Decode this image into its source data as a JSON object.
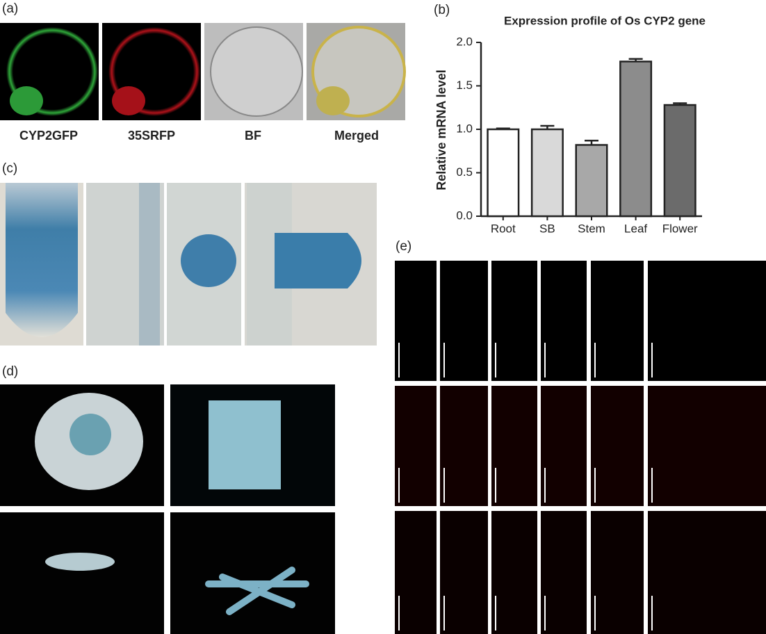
{
  "panels": {
    "a": {
      "label": "(a)",
      "captions": [
        "CYP2GFP",
        "35SRFP",
        "BF",
        "Merged"
      ]
    },
    "b": {
      "label": "(b)"
    },
    "c": {
      "label": "(c)"
    },
    "d": {
      "label": "(d)"
    },
    "e": {
      "label": "(e)"
    }
  },
  "chart_data": {
    "type": "bar",
    "title": "Expression profile of Os CYP2 gene",
    "y_label": "Relative mRNA level",
    "categories": [
      "Root",
      "SB",
      "Stem",
      "Leaf",
      "Flower"
    ],
    "values": [
      1.0,
      1.0,
      0.82,
      1.78,
      1.28
    ],
    "errors": [
      0.01,
      0.04,
      0.05,
      0.03,
      0.02
    ],
    "colors": [
      "#ffffff",
      "#d9d9d9",
      "#a8a8a8",
      "#8c8c8c",
      "#6b6b6b"
    ],
    "ylim": [
      0,
      2.0
    ],
    "yticks": [
      {
        "value": 0,
        "label": "0.0"
      },
      {
        "value": 0.5,
        "label": "0.5"
      },
      {
        "value": 1.0,
        "label": "1.0"
      },
      {
        "value": 1.5,
        "label": "1.5"
      },
      {
        "value": 2.0,
        "label": "2.0"
      }
    ]
  }
}
